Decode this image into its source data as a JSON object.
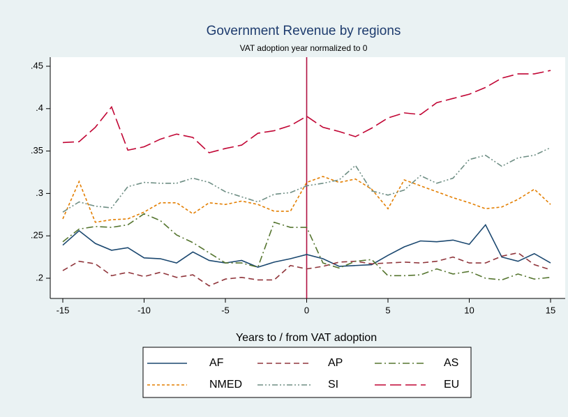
{
  "chart_data": {
    "type": "line",
    "title": "Government Revenue by regions",
    "subtitle": "VAT adoption year normalized to 0",
    "x_label": "Years to / from VAT adoption",
    "x": [
      -15,
      -14,
      -13,
      -12,
      -11,
      -10,
      -9,
      -8,
      -7,
      -6,
      -5,
      -4,
      -3,
      -2,
      -1,
      0,
      1,
      2,
      3,
      4,
      5,
      6,
      7,
      8,
      9,
      10,
      11,
      12,
      13,
      14,
      15
    ],
    "xlim": [
      -15,
      15
    ],
    "xticks": [
      -15,
      -10,
      -5,
      0,
      5,
      10,
      15
    ],
    "ylim": [
      0.2,
      0.45
    ],
    "yticks": [
      {
        "value": 0.2,
        "label": ".2"
      },
      {
        "value": 0.25,
        "label": ".25"
      },
      {
        "value": 0.3,
        "label": ".3"
      },
      {
        "value": 0.35,
        "label": ".35"
      },
      {
        "value": 0.4,
        "label": ".4"
      },
      {
        "value": 0.45,
        "label": ".45"
      }
    ],
    "xline": 0,
    "xline_color": "#b01040",
    "series": [
      {
        "name": "AF",
        "color": "#1a476f",
        "dash": "",
        "values": [
          0.239,
          0.256,
          0.241,
          0.233,
          0.236,
          0.224,
          0.223,
          0.218,
          0.231,
          0.221,
          0.218,
          0.221,
          0.213,
          0.219,
          0.223,
          0.228,
          0.223,
          0.214,
          0.215,
          0.216,
          0.227,
          0.237,
          0.244,
          0.243,
          0.245,
          0.24,
          0.263,
          0.225,
          0.22,
          0.229,
          0.218
        ]
      },
      {
        "name": "AP",
        "color": "#90353b",
        "dash": "8 5",
        "values": [
          0.209,
          0.22,
          0.217,
          0.203,
          0.207,
          0.202,
          0.207,
          0.201,
          0.204,
          0.191,
          0.199,
          0.201,
          0.198,
          0.198,
          0.215,
          0.211,
          0.214,
          0.219,
          0.22,
          0.217,
          0.218,
          0.219,
          0.218,
          0.22,
          0.225,
          0.218,
          0.218,
          0.226,
          0.23,
          0.216,
          0.21
        ]
      },
      {
        "name": "AS",
        "color": "#55752f",
        "dash": "10 4 2 4",
        "values": [
          0.243,
          0.258,
          0.261,
          0.26,
          0.263,
          0.276,
          0.268,
          0.251,
          0.242,
          0.23,
          0.218,
          0.218,
          0.213,
          0.266,
          0.26,
          0.26,
          0.218,
          0.212,
          0.22,
          0.222,
          0.203,
          0.203,
          0.204,
          0.211,
          0.205,
          0.208,
          0.2,
          0.198,
          0.205,
          0.199,
          0.201
        ]
      },
      {
        "name": "NMED",
        "color": "#e37e00",
        "dash": "4 3",
        "values": [
          0.27,
          0.314,
          0.266,
          0.269,
          0.27,
          0.278,
          0.289,
          0.289,
          0.276,
          0.289,
          0.287,
          0.291,
          0.287,
          0.279,
          0.279,
          0.313,
          0.32,
          0.313,
          0.317,
          0.305,
          0.282,
          0.316,
          0.309,
          0.302,
          0.295,
          0.289,
          0.282,
          0.284,
          0.293,
          0.305,
          0.287
        ]
      },
      {
        "name": "SI",
        "color": "#6e8e84",
        "dash": "8 3 2 3 2 3",
        "values": [
          0.278,
          0.29,
          0.285,
          0.283,
          0.308,
          0.313,
          0.312,
          0.312,
          0.318,
          0.313,
          0.302,
          0.296,
          0.29,
          0.299,
          0.301,
          0.309,
          0.312,
          0.316,
          0.333,
          0.303,
          0.298,
          0.304,
          0.321,
          0.312,
          0.318,
          0.34,
          0.345,
          0.332,
          0.342,
          0.345,
          0.354
        ]
      },
      {
        "name": "EU",
        "color": "#c10534",
        "dash": "16 6",
        "values": [
          0.36,
          0.361,
          0.378,
          0.402,
          0.351,
          0.355,
          0.364,
          0.37,
          0.366,
          0.348,
          0.353,
          0.357,
          0.371,
          0.374,
          0.38,
          0.391,
          0.378,
          0.373,
          0.367,
          0.377,
          0.389,
          0.395,
          0.393,
          0.407,
          0.412,
          0.417,
          0.425,
          0.436,
          0.441,
          0.441,
          0.445
        ]
      }
    ]
  }
}
